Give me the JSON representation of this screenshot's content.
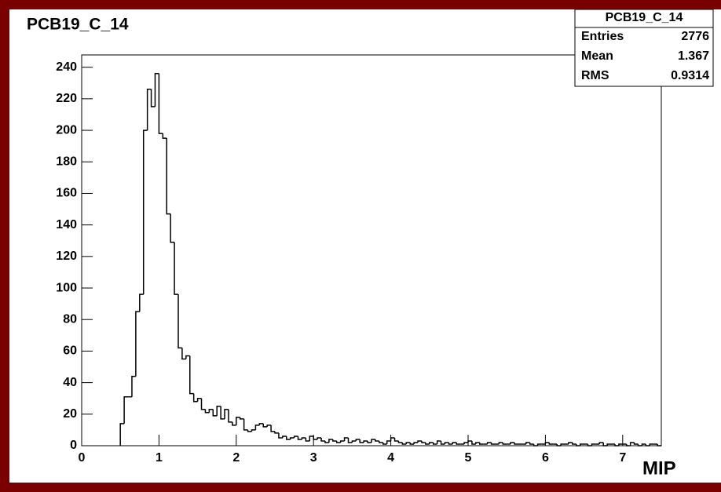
{
  "chart_data": {
    "type": "histogram",
    "title": "PCB19_C_14",
    "x_label": "MIP",
    "color": "#000000",
    "stats": {
      "title": "PCB19_C_14",
      "rows": [
        [
          "Entries",
          "2776"
        ],
        [
          "Mean",
          "1.367"
        ],
        [
          "RMS",
          "0.9314"
        ]
      ]
    },
    "bins": [
      0.5,
      0.55,
      0.6,
      0.65,
      0.7,
      0.75,
      0.8,
      0.85,
      0.9,
      0.95,
      1,
      1.05,
      1.1,
      1.15,
      1.2,
      1.25,
      1.3,
      1.35,
      1.4,
      1.45,
      1.5,
      1.55,
      1.6,
      1.65,
      1.7,
      1.75,
      1.8,
      1.85,
      1.9,
      1.95,
      2,
      2.05,
      2.1,
      2.15,
      2.2,
      2.25,
      2.3,
      2.35,
      2.4,
      2.45,
      2.5,
      2.55,
      2.6,
      2.65,
      2.7,
      2.75,
      2.8,
      2.85,
      2.9,
      2.95,
      3,
      3.05,
      3.1,
      3.15,
      3.2,
      3.25,
      3.3,
      3.35,
      3.4,
      3.45,
      3.5,
      3.55,
      3.6,
      3.65,
      3.7,
      3.75,
      3.8,
      3.85,
      3.9,
      3.95,
      4,
      4.05,
      4.1,
      4.15,
      4.2,
      4.25,
      4.3,
      4.35,
      4.4,
      4.45,
      4.5,
      4.55,
      4.6,
      4.65,
      4.7,
      4.75,
      4.8,
      4.85,
      4.9,
      4.95,
      5,
      5.05,
      5.1,
      5.15,
      5.2,
      5.25,
      5.3,
      5.35,
      5.4,
      5.45,
      5.5,
      5.55,
      5.6,
      5.65,
      5.7,
      5.75,
      5.8,
      5.85,
      5.9,
      5.95,
      6,
      6.05,
      6.1,
      6.15,
      6.2,
      6.25,
      6.3,
      6.35,
      6.4,
      6.45,
      6.5,
      6.55,
      6.6,
      6.65,
      6.7,
      6.75,
      6.8,
      6.85,
      6.9,
      6.95,
      7,
      7.05,
      7.1,
      7.15,
      7.2,
      7.25,
      7.3,
      7.35,
      7.4,
      7.45,
      7.5
    ],
    "values": [
      14,
      31,
      31,
      44,
      85,
      96,
      200,
      226,
      215,
      236,
      198,
      195,
      147,
      129,
      96,
      62,
      55,
      57,
      33,
      28,
      30,
      23,
      21,
      23,
      19,
      25,
      17,
      23,
      15,
      13,
      18,
      17,
      10,
      9,
      10,
      13,
      14,
      12,
      13,
      9,
      8,
      5,
      6,
      4,
      5,
      6,
      4,
      5,
      3,
      6,
      4,
      5,
      3,
      2,
      4,
      3,
      2,
      3,
      5,
      2,
      3,
      4,
      2,
      3,
      2,
      4,
      3,
      2,
      1,
      3,
      5,
      3,
      2,
      1,
      2,
      1,
      2,
      3,
      2,
      1,
      2,
      1,
      3,
      1,
      2,
      1,
      2,
      1,
      1,
      2,
      3,
      1,
      2,
      1,
      1,
      2,
      1,
      1,
      2,
      1,
      1,
      2,
      1,
      1,
      1,
      2,
      1,
      0,
      1,
      1,
      2,
      1,
      1,
      0,
      1,
      1,
      2,
      1,
      0,
      1,
      1,
      0,
      1,
      1,
      2,
      0,
      1,
      1,
      0,
      1,
      1,
      0,
      2,
      1,
      0,
      1,
      0,
      1,
      1,
      0
    ],
    "xlim": [
      0,
      7.5
    ],
    "ylim": [
      0,
      247.8
    ],
    "xticks": [
      0,
      1,
      2,
      3,
      4,
      5,
      6,
      7
    ],
    "yticks": [
      0,
      20,
      40,
      60,
      80,
      100,
      120,
      140,
      160,
      180,
      200,
      220,
      240
    ]
  }
}
